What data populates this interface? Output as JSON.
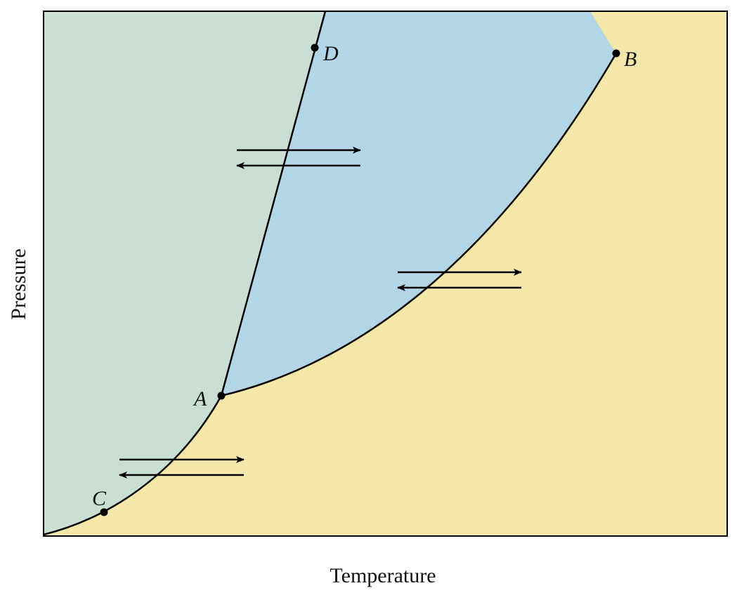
{
  "axes": {
    "x_label": "Temperature",
    "y_label": "Pressure"
  },
  "points": [
    {
      "label": "A"
    },
    {
      "label": "B"
    },
    {
      "label": "C"
    },
    {
      "label": "D"
    }
  ]
}
